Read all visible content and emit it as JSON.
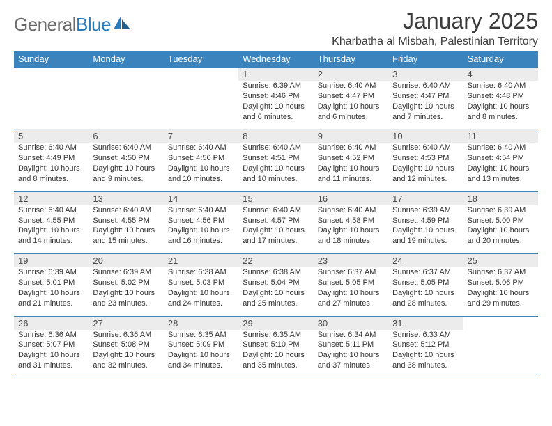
{
  "logo": {
    "text1": "General",
    "text2": "Blue"
  },
  "title": "January 2025",
  "location": "Kharbatha al Misbah, Palestinian Territory",
  "colors": {
    "header_bg": "#3b83bd",
    "header_text": "#ffffff",
    "daynum_bg": "#ececec",
    "border": "#3b83bd",
    "text": "#333333",
    "title_text": "#3a3a3a",
    "logo_gray": "#6a6a6a",
    "logo_blue": "#2a7ab8"
  },
  "day_headers": [
    "Sunday",
    "Monday",
    "Tuesday",
    "Wednesday",
    "Thursday",
    "Friday",
    "Saturday"
  ],
  "weeks": [
    [
      null,
      null,
      null,
      {
        "n": "1",
        "sr": "6:39 AM",
        "ss": "4:46 PM",
        "dl": "10 hours and 6 minutes."
      },
      {
        "n": "2",
        "sr": "6:40 AM",
        "ss": "4:47 PM",
        "dl": "10 hours and 6 minutes."
      },
      {
        "n": "3",
        "sr": "6:40 AM",
        "ss": "4:47 PM",
        "dl": "10 hours and 7 minutes."
      },
      {
        "n": "4",
        "sr": "6:40 AM",
        "ss": "4:48 PM",
        "dl": "10 hours and 8 minutes."
      }
    ],
    [
      {
        "n": "5",
        "sr": "6:40 AM",
        "ss": "4:49 PM",
        "dl": "10 hours and 8 minutes."
      },
      {
        "n": "6",
        "sr": "6:40 AM",
        "ss": "4:50 PM",
        "dl": "10 hours and 9 minutes."
      },
      {
        "n": "7",
        "sr": "6:40 AM",
        "ss": "4:50 PM",
        "dl": "10 hours and 10 minutes."
      },
      {
        "n": "8",
        "sr": "6:40 AM",
        "ss": "4:51 PM",
        "dl": "10 hours and 10 minutes."
      },
      {
        "n": "9",
        "sr": "6:40 AM",
        "ss": "4:52 PM",
        "dl": "10 hours and 11 minutes."
      },
      {
        "n": "10",
        "sr": "6:40 AM",
        "ss": "4:53 PM",
        "dl": "10 hours and 12 minutes."
      },
      {
        "n": "11",
        "sr": "6:40 AM",
        "ss": "4:54 PM",
        "dl": "10 hours and 13 minutes."
      }
    ],
    [
      {
        "n": "12",
        "sr": "6:40 AM",
        "ss": "4:55 PM",
        "dl": "10 hours and 14 minutes."
      },
      {
        "n": "13",
        "sr": "6:40 AM",
        "ss": "4:55 PM",
        "dl": "10 hours and 15 minutes."
      },
      {
        "n": "14",
        "sr": "6:40 AM",
        "ss": "4:56 PM",
        "dl": "10 hours and 16 minutes."
      },
      {
        "n": "15",
        "sr": "6:40 AM",
        "ss": "4:57 PM",
        "dl": "10 hours and 17 minutes."
      },
      {
        "n": "16",
        "sr": "6:40 AM",
        "ss": "4:58 PM",
        "dl": "10 hours and 18 minutes."
      },
      {
        "n": "17",
        "sr": "6:39 AM",
        "ss": "4:59 PM",
        "dl": "10 hours and 19 minutes."
      },
      {
        "n": "18",
        "sr": "6:39 AM",
        "ss": "5:00 PM",
        "dl": "10 hours and 20 minutes."
      }
    ],
    [
      {
        "n": "19",
        "sr": "6:39 AM",
        "ss": "5:01 PM",
        "dl": "10 hours and 21 minutes."
      },
      {
        "n": "20",
        "sr": "6:39 AM",
        "ss": "5:02 PM",
        "dl": "10 hours and 23 minutes."
      },
      {
        "n": "21",
        "sr": "6:38 AM",
        "ss": "5:03 PM",
        "dl": "10 hours and 24 minutes."
      },
      {
        "n": "22",
        "sr": "6:38 AM",
        "ss": "5:04 PM",
        "dl": "10 hours and 25 minutes."
      },
      {
        "n": "23",
        "sr": "6:37 AM",
        "ss": "5:05 PM",
        "dl": "10 hours and 27 minutes."
      },
      {
        "n": "24",
        "sr": "6:37 AM",
        "ss": "5:05 PM",
        "dl": "10 hours and 28 minutes."
      },
      {
        "n": "25",
        "sr": "6:37 AM",
        "ss": "5:06 PM",
        "dl": "10 hours and 29 minutes."
      }
    ],
    [
      {
        "n": "26",
        "sr": "6:36 AM",
        "ss": "5:07 PM",
        "dl": "10 hours and 31 minutes."
      },
      {
        "n": "27",
        "sr": "6:36 AM",
        "ss": "5:08 PM",
        "dl": "10 hours and 32 minutes."
      },
      {
        "n": "28",
        "sr": "6:35 AM",
        "ss": "5:09 PM",
        "dl": "10 hours and 34 minutes."
      },
      {
        "n": "29",
        "sr": "6:35 AM",
        "ss": "5:10 PM",
        "dl": "10 hours and 35 minutes."
      },
      {
        "n": "30",
        "sr": "6:34 AM",
        "ss": "5:11 PM",
        "dl": "10 hours and 37 minutes."
      },
      {
        "n": "31",
        "sr": "6:33 AM",
        "ss": "5:12 PM",
        "dl": "10 hours and 38 minutes."
      },
      null
    ]
  ],
  "labels": {
    "sunrise": "Sunrise:",
    "sunset": "Sunset:",
    "daylight": "Daylight:"
  }
}
